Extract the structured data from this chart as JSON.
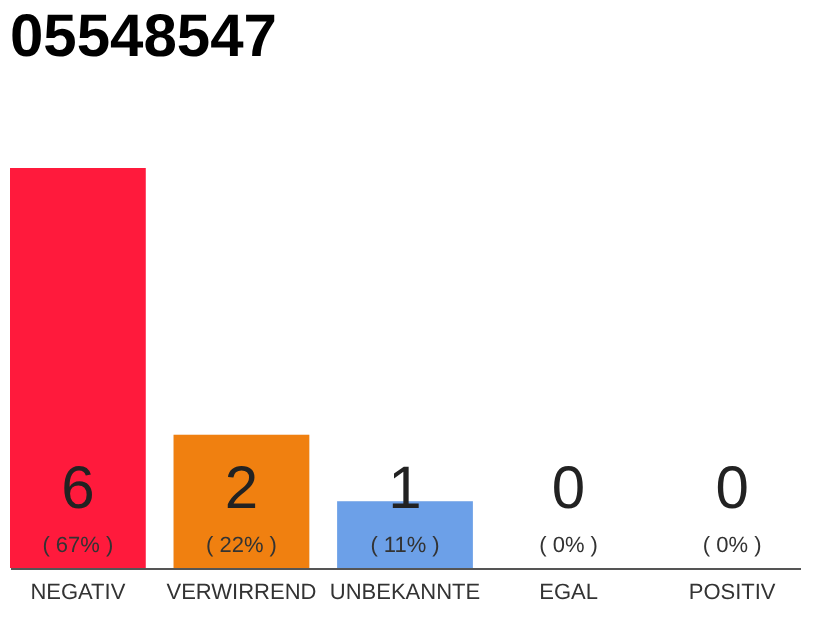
{
  "chart_data": {
    "type": "bar",
    "title": "05548547",
    "categories": [
      "NEGATIV",
      "VERWIRREND",
      "UNBEKANNTE",
      "EGAL",
      "POSITIV"
    ],
    "values": [
      6,
      2,
      1,
      0,
      0
    ],
    "colors": [
      "#ff1a3c",
      "#f08010",
      "#6ca0e8",
      "#d0d0d0",
      "#d0d0d0"
    ],
    "tick_labels": "x",
    "data_labels": true,
    "annotations": [
      "( 67% )",
      "( 22% )",
      "( 11% )",
      "( 0% )",
      "( 0% )"
    ]
  }
}
